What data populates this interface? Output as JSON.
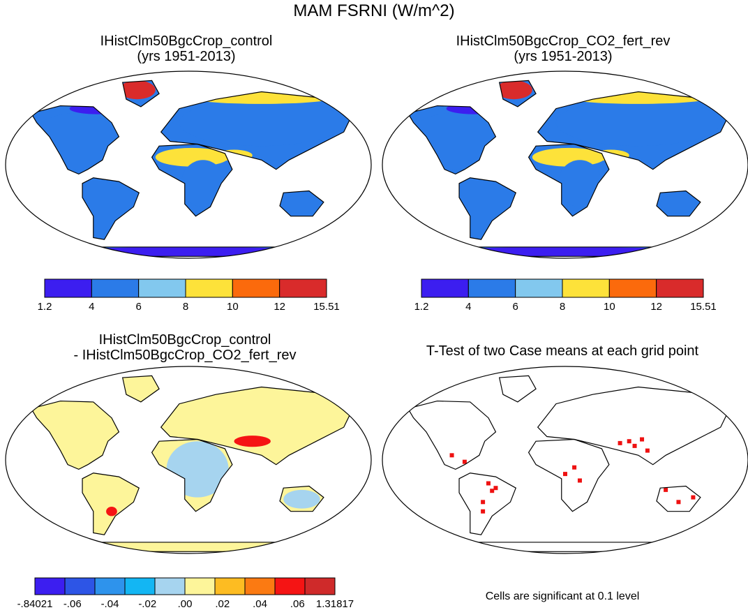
{
  "title": "MAM FSRNI (W/m^2)",
  "panels": [
    {
      "title1": "IHistClm50BgcCrop_control",
      "title2": "(yrs 1951-2013)"
    },
    {
      "title1": "IHistClm50BgcCrop_CO2_fert_rev",
      "title2": "(yrs 1951-2013)"
    },
    {
      "title1": "IHistClm50BgcCrop_control",
      "title2": "- IHistClm50BgcCrop_CO2_fert_rev"
    },
    {
      "title1": "T-Test of two Case means at each grid point",
      "title2": ""
    }
  ],
  "colorbar_top": {
    "labels": [
      "1.2",
      "4",
      "6",
      "8",
      "10",
      "12",
      "15.51"
    ],
    "colors": [
      "#3c1ef0",
      "#2b7be8",
      "#82c8ee",
      "#fde23a",
      "#fb6a0c",
      "#d92b2b"
    ]
  },
  "colorbar_diff": {
    "labels": [
      "-.84021",
      "-.06",
      "-.04",
      "-.02",
      ".00",
      ".02",
      ".04",
      ".06",
      "1.31817"
    ],
    "colors": [
      "#3c1ef0",
      "#2d55e6",
      "#2e93ec",
      "#13b6f3",
      "#a6d4ef",
      "#fdf59a",
      "#fdbc22",
      "#fb7a12",
      "#f51414",
      "#cf2a2a"
    ]
  },
  "significance_note": "Cells are significant at 0.1 level",
  "map_palette": {
    "ocean": "#ffffff",
    "outline": "#000000",
    "significant": "#ee1111"
  }
}
